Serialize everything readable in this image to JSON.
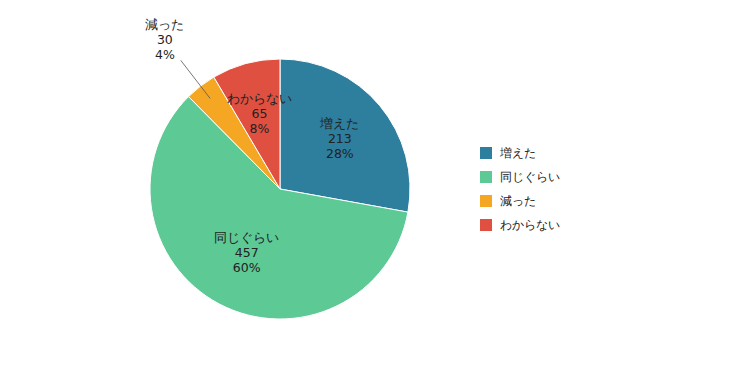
{
  "chart_data": {
    "type": "pie",
    "categories": [
      "増えた",
      "同じぐらい",
      "減った",
      "わからない"
    ],
    "values": [
      213,
      457,
      30,
      65
    ],
    "data_labels": true,
    "percentages": [
      28,
      60,
      4,
      8
    ],
    "percentage_labels": [
      "28%",
      "60%",
      "4%",
      "8%"
    ],
    "colors": [
      "#2e7e9e",
      "#5dc995",
      "#f5a623",
      "#e05040"
    ],
    "legend": "right"
  }
}
